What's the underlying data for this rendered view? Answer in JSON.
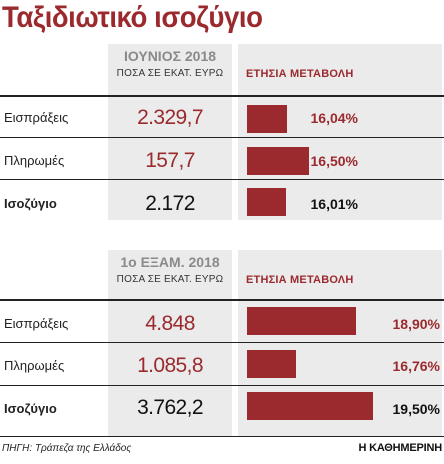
{
  "title": "Ταξιδιωτικό ισοζύγιο",
  "change_header": "ΕΤΗΣΙΑ ΜΕΤΑΒΟΛΗ",
  "unit_label": "ΠΟΣΑ ΣΕ ΕΚΑΤ. ΕΥΡΩ",
  "source": "ΠΗΓΗ: Τράπεζα της Ελλάδος",
  "brand": "Η ΚΑΘΗΜΕΡΙΝΗ",
  "colors": {
    "accent": "#9b2a2e",
    "panel": "#ebebeb"
  },
  "chart_data": [
    {
      "type": "table",
      "period": "ΙΟΥΝΙΟΣ 2018",
      "rows": [
        {
          "label": "Εισπράξεις",
          "value": "2.329,7",
          "change": 16.04,
          "change_label": "16,04%"
        },
        {
          "label": "Πληρωμές",
          "value": "157,7",
          "change": 16.5,
          "change_label": "16,50%"
        },
        {
          "label": "Ισοζύγιο",
          "value": "2.172",
          "change": 16.01,
          "change_label": "16,01%"
        }
      ]
    },
    {
      "type": "table",
      "period": "1ο ΕΞΑΜ. 2018",
      "rows": [
        {
          "label": "Εισπράξεις",
          "value": "4.848",
          "change": 18.9,
          "change_label": "18,90%"
        },
        {
          "label": "Πληρωμές",
          "value": "1.085,8",
          "change": 16.76,
          "change_label": "16,76%"
        },
        {
          "label": "Ισοζύγιο",
          "value": "3.762,2",
          "change": 19.5,
          "change_label": "19,50%"
        }
      ]
    }
  ]
}
